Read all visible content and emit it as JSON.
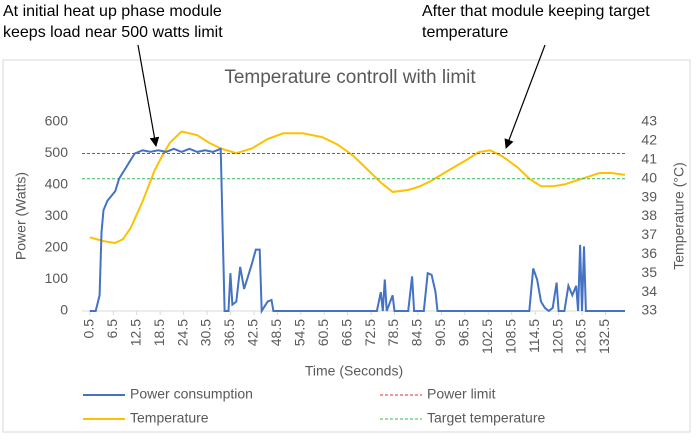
{
  "chart_data": {
    "type": "line",
    "title": "Temperature controll with limit",
    "annotations": [
      [
        "At initial heat up phase module",
        "keeps load near 500 watts limit"
      ],
      [
        "After that module keeping target",
        "temperature"
      ]
    ],
    "xlabel": "Time (Seconds)",
    "ylabel": "Power (Watts)",
    "y2label": "Temperature (°C)",
    "xlim": [
      -1.5,
      137.5
    ],
    "xticks": [
      0.5,
      6.5,
      12.5,
      18.5,
      24.5,
      30.5,
      36.5,
      42.5,
      48.5,
      54.5,
      60.5,
      66.5,
      72.5,
      78.5,
      84.5,
      90.5,
      96.5,
      102.5,
      108.5,
      114.5,
      120.5,
      126.5,
      132.5
    ],
    "ylim": [
      0,
      600
    ],
    "yticks": [
      0,
      100,
      200,
      300,
      400,
      500,
      600
    ],
    "y2lim": [
      33,
      43
    ],
    "y2ticks": [
      33,
      34,
      35,
      36,
      37,
      38,
      39,
      40,
      41,
      42,
      43
    ],
    "grid": false,
    "series": [
      {
        "name": "Power consumption",
        "color": "#4472c4",
        "dash": false,
        "x": [
          0.5,
          2,
          3,
          3.5,
          4,
          5,
          7,
          8,
          10,
          12,
          14,
          16,
          18,
          20,
          22,
          24,
          26,
          28,
          30,
          32,
          34,
          35,
          36,
          36.5,
          37,
          38,
          39,
          40,
          41,
          42,
          43,
          44,
          44.5,
          46,
          47,
          47.5,
          74,
          75,
          75.5,
          76,
          76.5,
          78,
          78.5,
          82,
          83,
          83.5,
          86,
          87,
          88,
          89,
          89.5,
          113,
          114,
          115,
          116,
          117,
          118,
          119,
          120,
          120.5,
          122,
          123,
          124,
          125,
          125.5,
          126,
          126.5,
          127,
          127.5,
          137.5
        ],
        "values": [
          0,
          0,
          50,
          250,
          320,
          350,
          380,
          420,
          460,
          500,
          510,
          505,
          510,
          505,
          515,
          505,
          515,
          505,
          510,
          505,
          515,
          0,
          0,
          120,
          20,
          30,
          140,
          70,
          110,
          150,
          195,
          195,
          0,
          30,
          35,
          0,
          0,
          60,
          0,
          100,
          0,
          50,
          0,
          0,
          110,
          0,
          0,
          120,
          115,
          60,
          0,
          0,
          135,
          100,
          30,
          10,
          0,
          10,
          90,
          0,
          0,
          80,
          50,
          80,
          0,
          210,
          0,
          205,
          0,
          0
        ]
      },
      {
        "name": "Power limit",
        "color": "#e03030",
        "dash": true,
        "x": [
          -1.5,
          137.5
        ],
        "values": [
          500,
          500
        ]
      },
      {
        "name": "Temperature",
        "color": "#ffc000",
        "dash": false,
        "axis": "y2",
        "x": [
          0.5,
          4,
          7,
          9,
          11,
          14,
          17,
          19,
          21,
          24,
          28,
          31,
          34,
          38,
          42,
          46,
          50,
          55,
          60,
          64,
          68,
          72,
          75,
          78,
          82,
          85,
          88,
          92,
          97,
          100,
          103,
          106,
          110,
          113,
          116,
          119,
          122,
          125,
          128,
          131,
          134,
          137.5
        ],
        "values": [
          36.9,
          36.7,
          36.6,
          36.8,
          37.4,
          38.8,
          40.4,
          41.2,
          41.9,
          42.5,
          42.3,
          41.9,
          41.6,
          41.35,
          41.6,
          42.1,
          42.4,
          42.4,
          42.2,
          41.8,
          41.2,
          40.4,
          39.8,
          39.3,
          39.4,
          39.6,
          39.9,
          40.4,
          41.0,
          41.4,
          41.5,
          41.2,
          40.6,
          40.0,
          39.6,
          39.6,
          39.7,
          39.9,
          40.1,
          40.3,
          40.3,
          40.2
        ]
      },
      {
        "name": "Target temperature",
        "color": "#33bb55",
        "dash": true,
        "axis": "y2",
        "x": [
          -1.5,
          137.5
        ],
        "values": [
          40,
          40
        ]
      }
    ]
  }
}
